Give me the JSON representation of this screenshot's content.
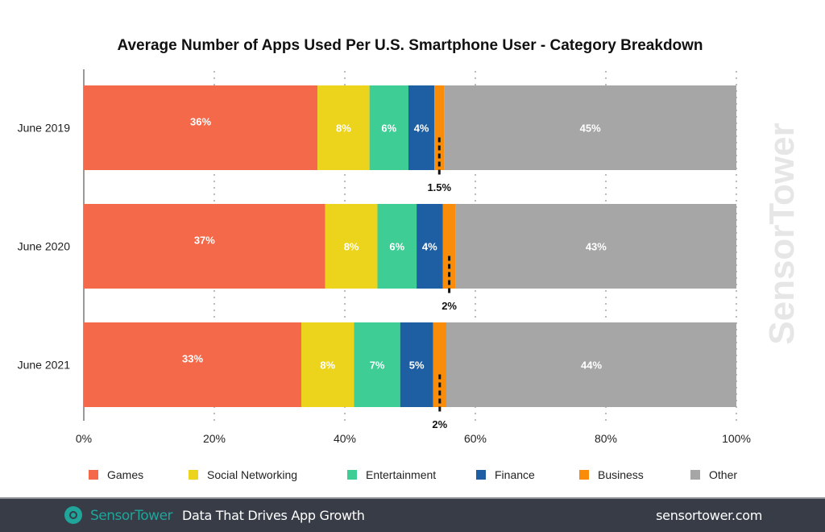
{
  "chart_data": {
    "type": "bar",
    "orientation": "horizontal",
    "stacked": true,
    "title": "Average Number of Apps Used Per U.S. Smartphone User - Category Breakdown",
    "categories": [
      "June 2019",
      "June 2020",
      "June 2021"
    ],
    "series": [
      {
        "name": "Games",
        "color": "#f4694a",
        "values": [
          36,
          37,
          33
        ],
        "labels": [
          "36%",
          "37%",
          "33%"
        ]
      },
      {
        "name": "Social Networking",
        "color": "#ecd41d",
        "values": [
          8,
          8,
          8
        ],
        "labels": [
          "8%",
          "8%",
          "8%"
        ]
      },
      {
        "name": "Entertainment",
        "color": "#3dcd95",
        "values": [
          6,
          6,
          7
        ],
        "labels": [
          "6%",
          "6%",
          "7%"
        ]
      },
      {
        "name": "Finance",
        "color": "#1e5fa3",
        "values": [
          4,
          4,
          5
        ],
        "labels": [
          "4%",
          "4%",
          "5%"
        ]
      },
      {
        "name": "Business",
        "color": "#f98d0a",
        "values": [
          1.5,
          2,
          2
        ],
        "labels": [
          "1.5%",
          "2%",
          "2%"
        ]
      },
      {
        "name": "Other",
        "color": "#a6a6a6",
        "values": [
          45,
          43,
          44
        ],
        "labels": [
          "45%",
          "43%",
          "44%"
        ]
      }
    ],
    "xlim": [
      0,
      100
    ],
    "xticks": [
      "0%",
      "20%",
      "40%",
      "60%",
      "80%",
      "100%"
    ],
    "grid": true,
    "legend": "bottom"
  },
  "watermark": "SensorTower",
  "footer": {
    "brand": "SensorTower",
    "tagline": "Data That Drives App Growth",
    "url": "sensortower.com"
  }
}
